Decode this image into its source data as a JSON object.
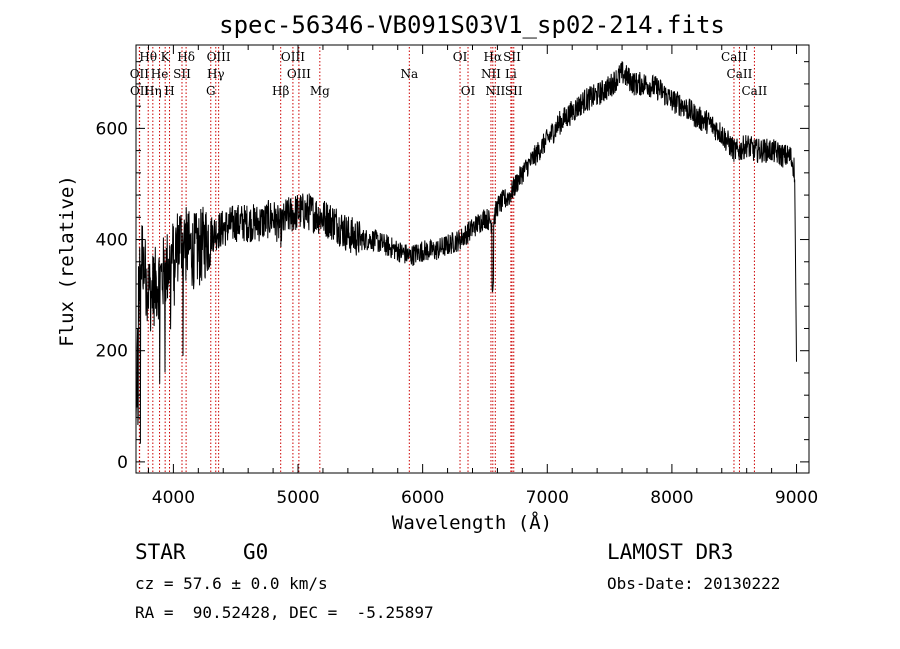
{
  "chart_data": {
    "type": "line",
    "title": "spec-56346-VB091S03V1_sp02-214.fits",
    "xlabel": "Wavelength (Å)",
    "ylabel": "Flux (relative)",
    "xlim": [
      3700,
      9100
    ],
    "ylim": [
      -20,
      750
    ],
    "xticks": [
      4000,
      5000,
      6000,
      7000,
      8000,
      9000
    ],
    "yticks": [
      0,
      200,
      400,
      600
    ],
    "series": [
      {
        "name": "spectrum",
        "x": [
          3700,
          3720,
          3750,
          3780,
          3820,
          3860,
          3900,
          3950,
          4000,
          4050,
          4100,
          4150,
          4200,
          4300,
          4400,
          4500,
          4600,
          4700,
          4800,
          4861,
          4900,
          5000,
          5100,
          5200,
          5300,
          5400,
          5500,
          5600,
          5700,
          5800,
          5900,
          6000,
          6100,
          6200,
          6300,
          6400,
          6500,
          6563,
          6600,
          6700,
          6800,
          6900,
          7000,
          7100,
          7200,
          7300,
          7400,
          7500,
          7600,
          7650,
          7700,
          7800,
          7900,
          8000,
          8100,
          8200,
          8300,
          8400,
          8500,
          8542,
          8600,
          8662,
          8700,
          8800,
          8900,
          8950,
          8980,
          9000
        ],
        "y": [
          50,
          300,
          380,
          330,
          300,
          320,
          330,
          350,
          370,
          400,
          390,
          380,
          380,
          410,
          420,
          430,
          430,
          430,
          440,
          420,
          440,
          450,
          450,
          440,
          430,
          410,
          400,
          400,
          390,
          380,
          370,
          380,
          380,
          390,
          400,
          420,
          440,
          430,
          460,
          480,
          520,
          550,
          580,
          610,
          630,
          650,
          660,
          675,
          700,
          690,
          680,
          680,
          670,
          650,
          640,
          620,
          610,
          590,
          560,
          560,
          570,
          560,
          560,
          560,
          550,
          550,
          530,
          450
        ]
      }
    ],
    "lines": [
      {
        "label": "Hθ",
        "wl": 3798,
        "row": 0
      },
      {
        "label": "K",
        "wl": 3934,
        "row": 0
      },
      {
        "label": "Hδ",
        "wl": 4102,
        "row": 0
      },
      {
        "label": "OIII",
        "wl": 4363,
        "row": 0
      },
      {
        "label": "OIII",
        "wl": 4959,
        "row": 0
      },
      {
        "label": "OI",
        "wl": 6300,
        "row": 0
      },
      {
        "label": "Hα",
        "wl": 6563,
        "row": 0
      },
      {
        "label": "SII",
        "wl": 6717,
        "row": 0
      },
      {
        "label": "CaII",
        "wl": 8498,
        "row": 0
      },
      {
        "label": "OII",
        "wl": 3727,
        "row": 1
      },
      {
        "label": "He",
        "wl": 3889,
        "row": 1
      },
      {
        "label": "SII",
        "wl": 4069,
        "row": 1
      },
      {
        "label": "Hγ",
        "wl": 4340,
        "row": 1
      },
      {
        "label": "OIII",
        "wl": 5007,
        "row": 1
      },
      {
        "label": "Na",
        "wl": 5893,
        "row": 1
      },
      {
        "label": "NII",
        "wl": 6548,
        "row": 1
      },
      {
        "label": "Li",
        "wl": 6708,
        "row": 1
      },
      {
        "label": "CaII",
        "wl": 8542,
        "row": 1
      },
      {
        "label": "OII",
        "wl": 3729,
        "row": 2
      },
      {
        "label": "Hη",
        "wl": 3835,
        "row": 2
      },
      {
        "label": "H",
        "wl": 3969,
        "row": 2
      },
      {
        "label": "G",
        "wl": 4300,
        "row": 2
      },
      {
        "label": "Hβ",
        "wl": 4861,
        "row": 2
      },
      {
        "label": "Mg",
        "wl": 5175,
        "row": 2
      },
      {
        "label": "OI",
        "wl": 6364,
        "row": 2
      },
      {
        "label": "NII",
        "wl": 6583,
        "row": 2
      },
      {
        "label": "SII",
        "wl": 6731,
        "row": 2
      },
      {
        "label": "CaII",
        "wl": 8662,
        "row": 2
      }
    ]
  },
  "info": {
    "class": "STAR",
    "subclass": "G0",
    "survey": "LAMOST DR3",
    "cz": "cz = 57.6 ± 0.0 km/s",
    "obs_date": "Obs-Date: 20130222",
    "coords": "RA =  90.52428, DEC =  -5.25897"
  },
  "colors": {
    "line_marker": "#cc0000",
    "spectrum": "#000000",
    "axes": "#000000"
  }
}
